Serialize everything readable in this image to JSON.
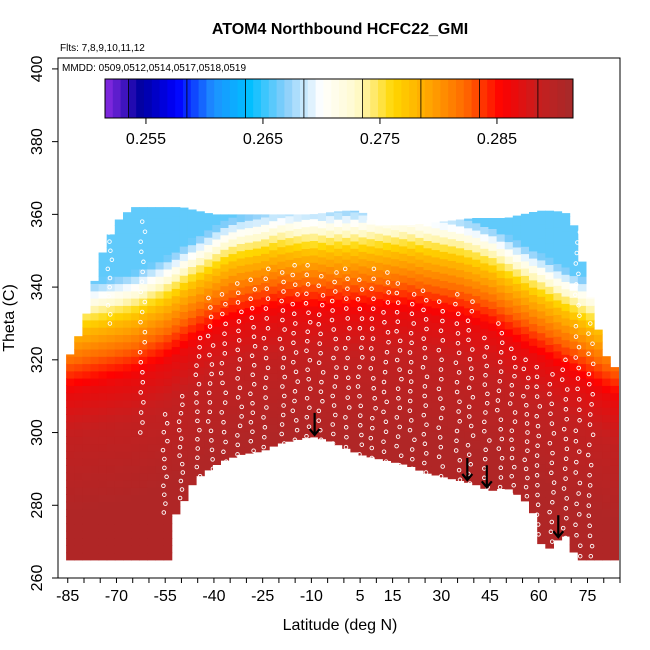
{
  "chart_data": {
    "type": "heatmap",
    "title": "ATOM4 Northbound HCFC22_GMI",
    "flights_note": "Flts: 7,8,9,10,11,12",
    "dates_note": "MMDD: 0509,0512,0514,0517,0518,0519",
    "xlabel": "Latitude (deg N)",
    "ylabel": "Theta (C)",
    "xlim": [
      -88,
      85
    ],
    "ylim": [
      260,
      403
    ],
    "x_tick_labels": [
      "-85",
      "-70",
      "-55",
      "-40",
      "-25",
      "-10",
      "5",
      "15",
      "30",
      "45",
      "60",
      "75"
    ],
    "y_tick_labels": [
      "260",
      "280",
      "300",
      "320",
      "340",
      "360",
      "380",
      "400"
    ],
    "colorbar": {
      "range": [
        0.2515,
        0.2915
      ],
      "tick_labels": [
        "0.255",
        "0.265",
        "0.275",
        "0.285"
      ],
      "stops": [
        "#8a2be2",
        "#0000a0",
        "#0000ff",
        "#1e90ff",
        "#00bfff",
        "#87cefa",
        "#ffffff",
        "#fffacd",
        "#ffd700",
        "#ffa500",
        "#ff6a00",
        "#ff0000",
        "#c81e1e",
        "#a52a2a"
      ]
    },
    "colors": {
      "surface_fill": "#b22222",
      "marker": "#ffffff",
      "arrow": "#000000"
    },
    "arrows_latitude": [
      -9,
      38,
      44,
      66
    ],
    "surface_boundary": {
      "latitude": [
        -85,
        -60,
        -53,
        -53,
        -50,
        -46,
        -43,
        -38,
        -32,
        -25,
        -20,
        -15,
        -10,
        -5,
        0,
        5,
        10,
        15,
        20,
        25,
        30,
        35,
        40,
        45,
        50,
        55,
        58,
        60,
        62,
        65,
        68,
        72,
        75,
        78,
        83
      ],
      "theta": [
        265,
        265,
        265,
        276,
        280,
        287,
        289,
        292,
        294,
        295,
        297,
        298,
        299,
        298,
        296,
        294,
        293,
        292,
        291,
        289,
        288,
        287,
        286,
        284,
        285,
        282,
        279,
        271,
        267,
        270,
        272,
        265,
        265,
        265,
        265
      ]
    },
    "top_boundary": {
      "latitude": [
        -85,
        -80,
        -75,
        -70,
        -65,
        -60,
        -55,
        -50,
        -45,
        -40,
        -30,
        -20,
        -10,
        0,
        5,
        10,
        20,
        30,
        40,
        50,
        55,
        60,
        65,
        70,
        75,
        80,
        83
      ],
      "theta": [
        320,
        330,
        348,
        358,
        362,
        362,
        362,
        362,
        361,
        360,
        360,
        360,
        360,
        361,
        361,
        357,
        357,
        358,
        359,
        359,
        360,
        361,
        361,
        360,
        340,
        322,
        318
      ]
    },
    "field_profile_comment": "HCFC22 mixing ratio vs theta: high (~0.290) near the surface, decreasing upward to ~0.265 near 360 K",
    "field_bands": [
      {
        "theta_top": 300,
        "value": 0.2905
      },
      {
        "theta_top": 320,
        "value": 0.289
      },
      {
        "theta_top": 333,
        "value": 0.2865
      },
      {
        "theta_top": 342,
        "value": 0.282
      },
      {
        "theta_top": 349,
        "value": 0.278
      },
      {
        "theta_top": 355,
        "value": 0.273
      },
      {
        "theta_top": 362,
        "value": 0.266
      }
    ],
    "field_latitude_adjust": {
      "latitude": [
        -85,
        -75,
        -65,
        -55,
        -45,
        -35,
        -20,
        0,
        20,
        35,
        45,
        55,
        65,
        75,
        83
      ],
      "theta_offset": [
        -22,
        -20,
        -18,
        -14,
        -8,
        -3,
        0,
        0,
        0,
        -2,
        -5,
        -10,
        -15,
        -20,
        -24
      ]
    },
    "flight_tracks": [
      {
        "lat": -72,
        "theta_min": 330,
        "theta_max": 360
      },
      {
        "lat": -62,
        "theta_min": 300,
        "theta_max": 358
      },
      {
        "lat": -55,
        "theta_min": 278,
        "theta_max": 305
      },
      {
        "lat": -50,
        "theta_min": 282,
        "theta_max": 310
      },
      {
        "lat": -45,
        "theta_min": 288,
        "theta_max": 326
      },
      {
        "lat": -41,
        "theta_min": 290,
        "theta_max": 337
      },
      {
        "lat": -37,
        "theta_min": 292,
        "theta_max": 338
      },
      {
        "lat": -32,
        "theta_min": 294,
        "theta_max": 341
      },
      {
        "lat": -28,
        "theta_min": 295,
        "theta_max": 342
      },
      {
        "lat": -24,
        "theta_min": 296,
        "theta_max": 345
      },
      {
        "lat": -19,
        "theta_min": 297,
        "theta_max": 344
      },
      {
        "lat": -15,
        "theta_min": 298,
        "theta_max": 346
      },
      {
        "lat": -11,
        "theta_min": 299,
        "theta_max": 346
      },
      {
        "lat": -7,
        "theta_min": 298,
        "theta_max": 343
      },
      {
        "lat": -3,
        "theta_min": 297,
        "theta_max": 344
      },
      {
        "lat": 1,
        "theta_min": 296,
        "theta_max": 345
      },
      {
        "lat": 5,
        "theta_min": 294,
        "theta_max": 342
      },
      {
        "lat": 9,
        "theta_min": 293,
        "theta_max": 345
      },
      {
        "lat": 13,
        "theta_min": 292,
        "theta_max": 344
      },
      {
        "lat": 17,
        "theta_min": 291,
        "theta_max": 341
      },
      {
        "lat": 21,
        "theta_min": 290,
        "theta_max": 338
      },
      {
        "lat": 25,
        "theta_min": 289,
        "theta_max": 339
      },
      {
        "lat": 30,
        "theta_min": 288,
        "theta_max": 336
      },
      {
        "lat": 35,
        "theta_min": 287,
        "theta_max": 338
      },
      {
        "lat": 39,
        "theta_min": 286,
        "theta_max": 336
      },
      {
        "lat": 44,
        "theta_min": 285,
        "theta_max": 326
      },
      {
        "lat": 48,
        "theta_min": 285,
        "theta_max": 330
      },
      {
        "lat": 52,
        "theta_min": 283,
        "theta_max": 323
      },
      {
        "lat": 56,
        "theta_min": 280,
        "theta_max": 320
      },
      {
        "lat": 60,
        "theta_min": 272,
        "theta_max": 318
      },
      {
        "lat": 64,
        "theta_min": 270,
        "theta_max": 316
      },
      {
        "lat": 68,
        "theta_min": 271,
        "theta_max": 320
      },
      {
        "lat": 72,
        "theta_min": 266,
        "theta_max": 358
      },
      {
        "lat": 76,
        "theta_min": 266,
        "theta_max": 330
      }
    ]
  }
}
